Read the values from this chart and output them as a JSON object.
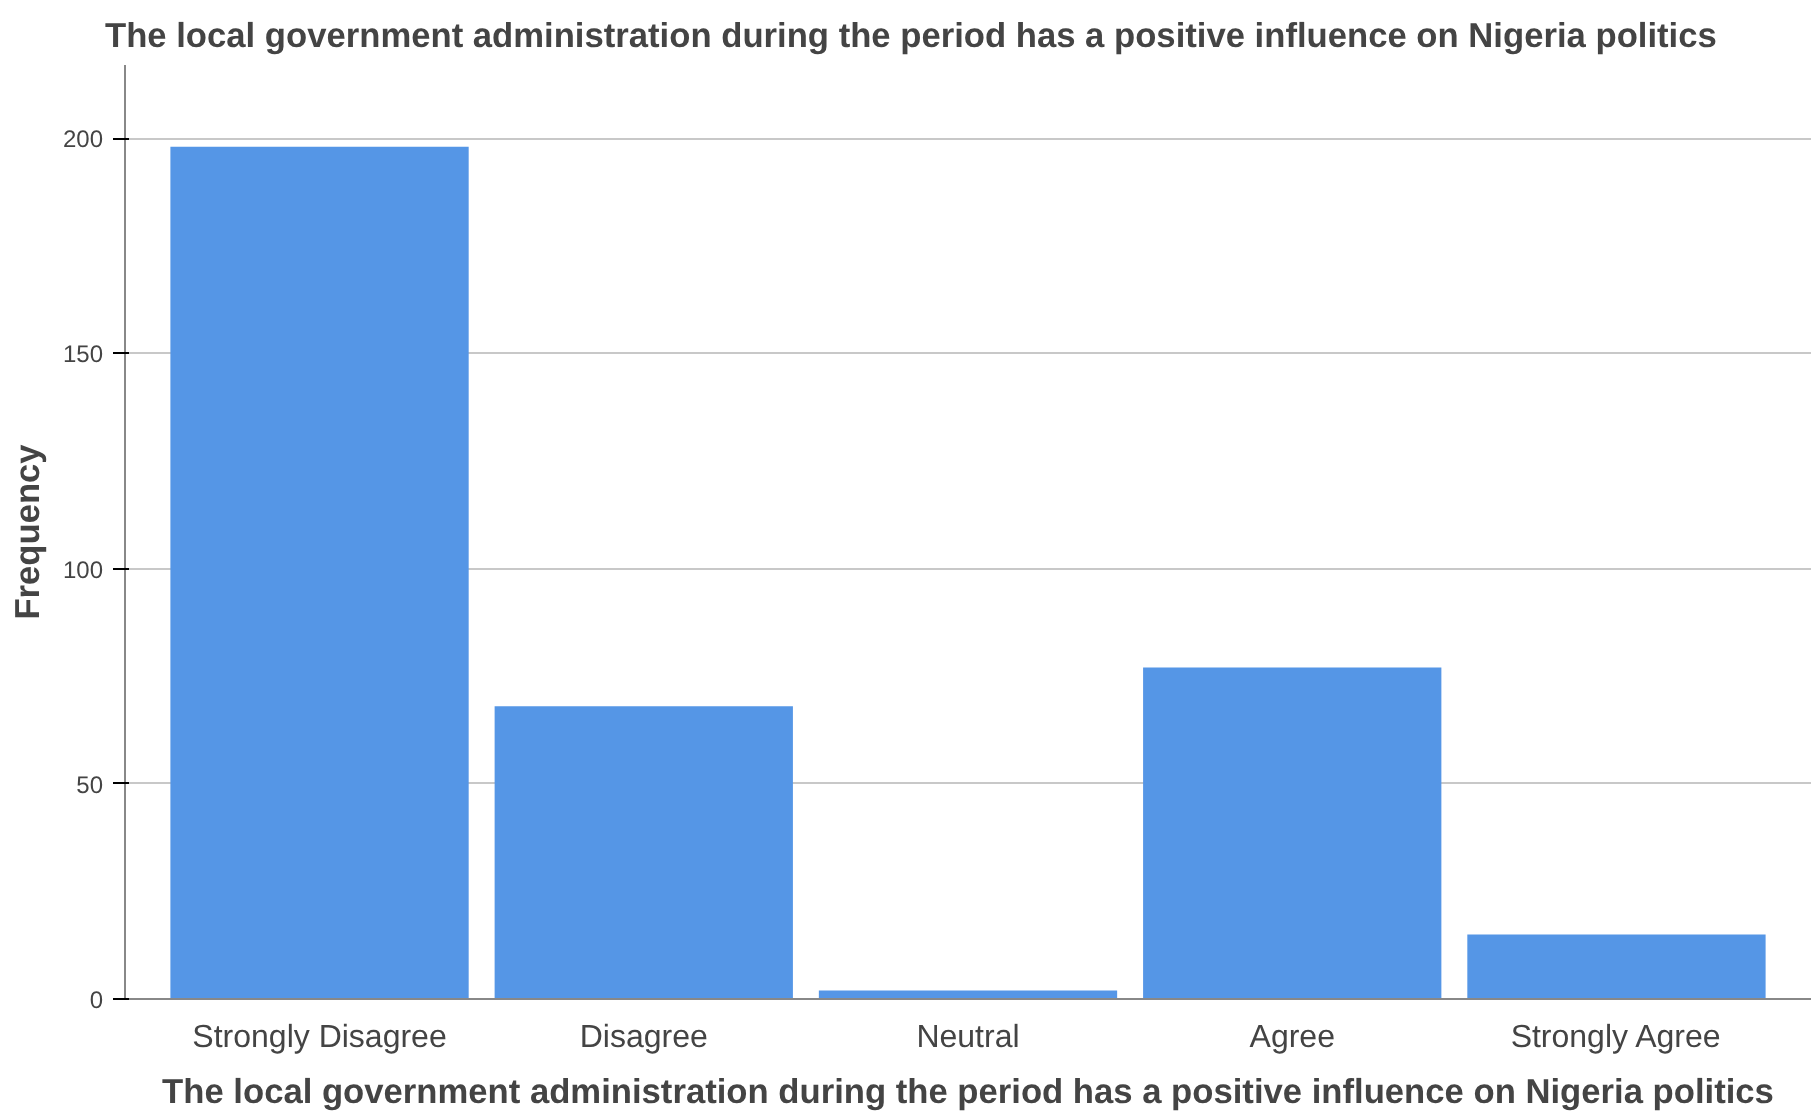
{
  "chart_data": {
    "type": "bar",
    "title": "The local government administration during the period has a positive influence on Nigeria politics",
    "xlabel": "The local government administration during the period has a positive influence on Nigeria politics",
    "ylabel": "Frequency",
    "categories": [
      "Strongly Disagree",
      "Disagree",
      "Neutral",
      "Agree",
      "Strongly Agree"
    ],
    "values": [
      198,
      68,
      2,
      77,
      15
    ],
    "color": "#5596e6",
    "ylim": [
      0,
      217
    ],
    "yticks": [
      0,
      50,
      100,
      150,
      200
    ],
    "grid": "y"
  }
}
